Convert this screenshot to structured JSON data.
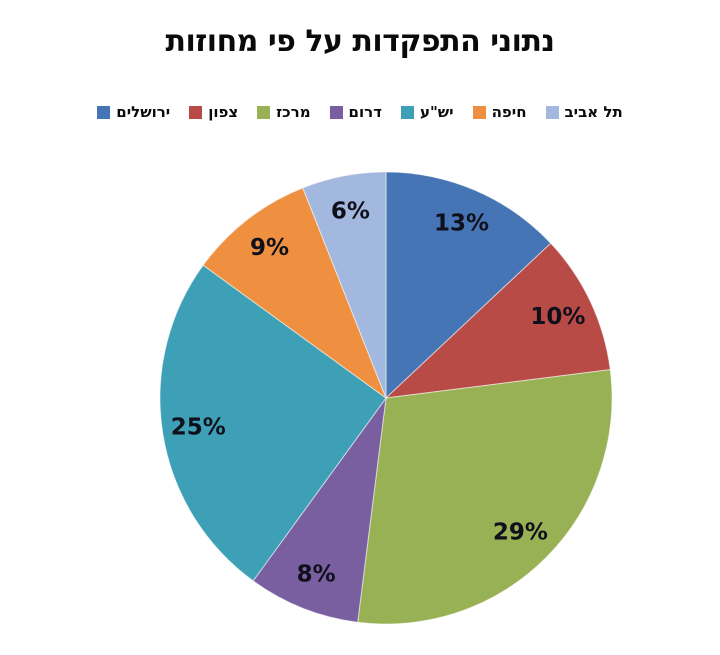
{
  "chart_data": {
    "type": "pie",
    "title": "נתוני התפקדות על פי מחוזות",
    "legend_position": "top",
    "direction": "clockwise",
    "start_angle_deg": 0,
    "data_labels": "percent",
    "label_color": "#10101c",
    "background_color": "#ffffff",
    "slices": [
      {
        "name": "jerusalem",
        "label": "ירושלים",
        "value": 13,
        "data_label": "13%",
        "color": "#4575B4"
      },
      {
        "name": "north",
        "label": "צפון",
        "value": 10,
        "data_label": "10%",
        "color": "#B94B47"
      },
      {
        "name": "center",
        "label": "מרכז",
        "value": 29,
        "data_label": "29%",
        "color": "#98B155"
      },
      {
        "name": "south",
        "label": "דרום",
        "value": 8,
        "data_label": "8%",
        "color": "#7A5FA0"
      },
      {
        "name": "yesha",
        "label": "יש\"ע",
        "value": 25,
        "data_label": "25%",
        "color": "#3EA0B6"
      },
      {
        "name": "haifa",
        "label": "חיפה",
        "value": 9,
        "data_label": "9%",
        "color": "#EE9040"
      },
      {
        "name": "tel-aviv",
        "label": "תל אביב",
        "value": 6,
        "data_label": "6%",
        "color": "#A3B8DE"
      }
    ]
  }
}
